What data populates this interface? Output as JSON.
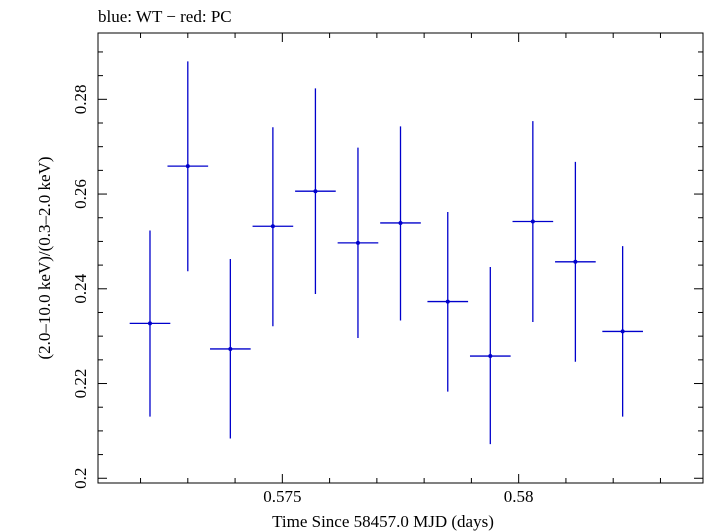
{
  "chart_data": {
    "type": "scatter",
    "title": "blue: WT − red: PC",
    "xlabel": "Time Since 58457.0 MJD (days)",
    "ylabel": "(2.0–10.0 keV)/(0.3–2.0 keV)",
    "xlim": [
      0.5711,
      0.5839
    ],
    "ylim": [
      0.199,
      0.294
    ],
    "x_ticks": [
      {
        "value": 0.575,
        "label": "0.575"
      },
      {
        "value": 0.58,
        "label": "0.58"
      }
    ],
    "y_ticks": [
      {
        "value": 0.2,
        "label": "0.2"
      },
      {
        "value": 0.22,
        "label": "0.22"
      },
      {
        "value": 0.24,
        "label": "0.24"
      },
      {
        "value": 0.26,
        "label": "0.26"
      },
      {
        "value": 0.28,
        "label": "0.28"
      }
    ],
    "grid": false,
    "series": [
      {
        "color": "#0000cc",
        "points": [
          {
            "x": 0.5722,
            "xerr": 0.00043,
            "y": 0.2327,
            "ylo": 0.213,
            "yhi": 0.2523
          },
          {
            "x": 0.573,
            "xerr": 0.00043,
            "y": 0.2659,
            "ylo": 0.2437,
            "yhi": 0.288
          },
          {
            "x": 0.5739,
            "xerr": 0.00043,
            "y": 0.2273,
            "ylo": 0.2084,
            "yhi": 0.2463
          },
          {
            "x": 0.5748,
            "xerr": 0.00043,
            "y": 0.2532,
            "ylo": 0.2321,
            "yhi": 0.2741
          },
          {
            "x": 0.5757,
            "xerr": 0.00043,
            "y": 0.2606,
            "ylo": 0.2389,
            "yhi": 0.2823
          },
          {
            "x": 0.5766,
            "xerr": 0.00043,
            "y": 0.2497,
            "ylo": 0.2296,
            "yhi": 0.2698
          },
          {
            "x": 0.5775,
            "xerr": 0.00043,
            "y": 0.2539,
            "ylo": 0.2333,
            "yhi": 0.2743
          },
          {
            "x": 0.5785,
            "xerr": 0.00043,
            "y": 0.2373,
            "ylo": 0.2183,
            "yhi": 0.2562
          },
          {
            "x": 0.5794,
            "xerr": 0.00043,
            "y": 0.2258,
            "ylo": 0.2072,
            "yhi": 0.2446
          },
          {
            "x": 0.5803,
            "xerr": 0.00043,
            "y": 0.2542,
            "ylo": 0.233,
            "yhi": 0.2754
          },
          {
            "x": 0.5812,
            "xerr": 0.00043,
            "y": 0.2457,
            "ylo": 0.2246,
            "yhi": 0.2668
          },
          {
            "x": 0.5822,
            "xerr": 0.00043,
            "y": 0.231,
            "ylo": 0.213,
            "yhi": 0.249
          }
        ]
      }
    ]
  }
}
